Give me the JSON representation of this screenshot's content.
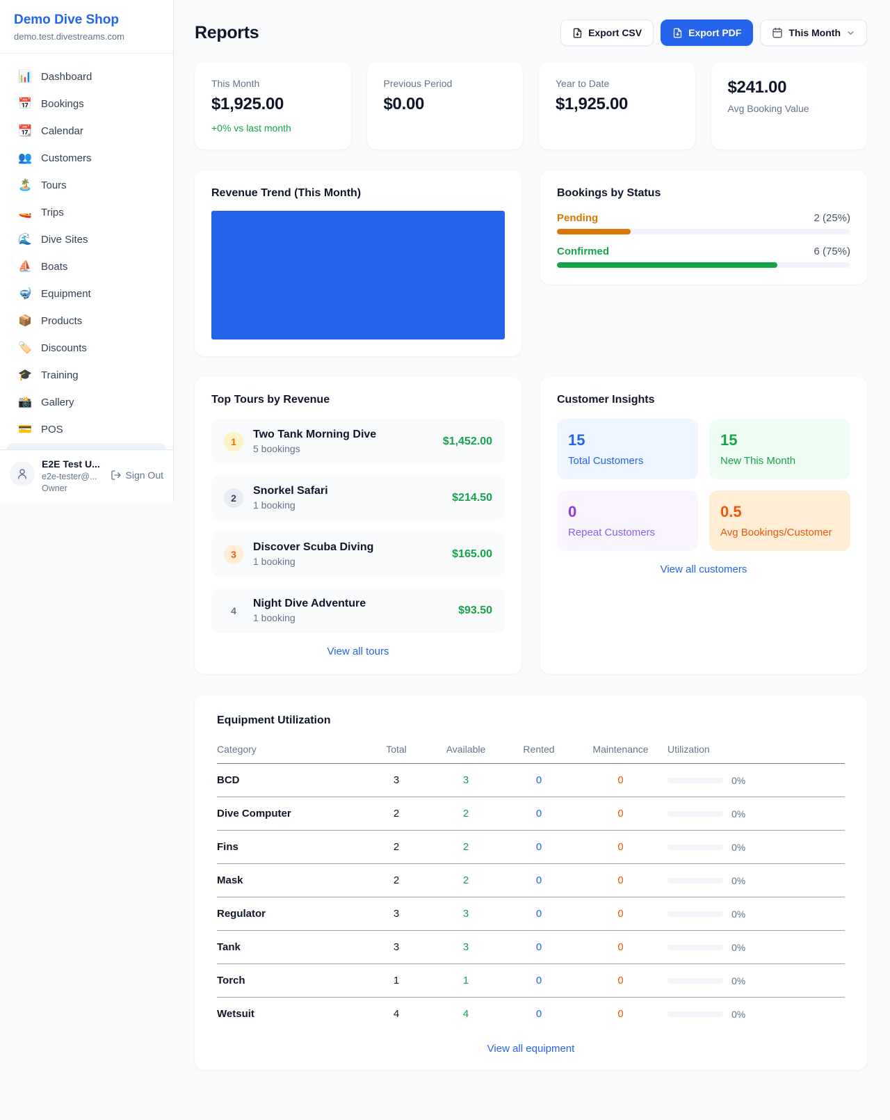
{
  "sidebar": {
    "shop_name": "Demo Dive Shop",
    "shop_domain": "demo.test.divestreams.com",
    "items": [
      {
        "icon": "📊",
        "label": "Dashboard"
      },
      {
        "icon": "📅",
        "label": "Bookings"
      },
      {
        "icon": "📆",
        "label": "Calendar"
      },
      {
        "icon": "👥",
        "label": "Customers"
      },
      {
        "icon": "🏝️",
        "label": "Tours"
      },
      {
        "icon": "🚤",
        "label": "Trips"
      },
      {
        "icon": "🌊",
        "label": "Dive Sites"
      },
      {
        "icon": "⛵",
        "label": "Boats"
      },
      {
        "icon": "🤿",
        "label": "Equipment"
      },
      {
        "icon": "📦",
        "label": "Products"
      },
      {
        "icon": "🏷️",
        "label": "Discounts"
      },
      {
        "icon": "🎓",
        "label": "Training"
      },
      {
        "icon": "📸",
        "label": "Gallery"
      },
      {
        "icon": "💳",
        "label": "POS"
      }
    ],
    "user": {
      "name": "E2E Test U...",
      "email": "e2e-tester@...",
      "role": "Owner",
      "sign_out": "Sign Out"
    }
  },
  "header": {
    "title": "Reports",
    "export_csv": "Export CSV",
    "export_pdf": "Export PDF",
    "period": "This Month"
  },
  "stats": [
    {
      "label": "This Month",
      "value": "$1,925.00",
      "delta": "+0% vs last month"
    },
    {
      "label": "Previous Period",
      "value": "$0.00"
    },
    {
      "label": "Year to Date",
      "value": "$1,925.00"
    },
    {
      "label": "Avg Booking Value",
      "value": "$241.00"
    }
  ],
  "revenue_trend": {
    "title": "Revenue Trend (This Month)"
  },
  "bookings_by_status": {
    "title": "Bookings by Status",
    "rows": [
      {
        "label": "Pending",
        "value": "2 (25%)",
        "pct": 25,
        "color": "#d97706"
      },
      {
        "label": "Confirmed",
        "value": "6 (75%)",
        "pct": 75,
        "color": "#16a34a"
      }
    ]
  },
  "top_tours": {
    "title": "Top Tours by Revenue",
    "view_all": "View all tours",
    "items": [
      {
        "rank": "1",
        "name": "Two Tank Morning Dive",
        "bookings": "5 bookings",
        "revenue": "$1,452.00"
      },
      {
        "rank": "2",
        "name": "Snorkel Safari",
        "bookings": "1 booking",
        "revenue": "$214.50"
      },
      {
        "rank": "3",
        "name": "Discover Scuba Diving",
        "bookings": "1 booking",
        "revenue": "$165.00"
      },
      {
        "rank": "4",
        "name": "Night Dive Adventure",
        "bookings": "1 booking",
        "revenue": "$93.50"
      }
    ]
  },
  "customer_insights": {
    "title": "Customer Insights",
    "view_all": "View all customers",
    "tiles": [
      {
        "value": "15",
        "label": "Total Customers"
      },
      {
        "value": "15",
        "label": "New This Month"
      },
      {
        "value": "0",
        "label": "Repeat Customers"
      },
      {
        "value": "0.5",
        "label": "Avg Bookings/Customer"
      }
    ]
  },
  "equipment": {
    "title": "Equipment Utilization",
    "view_all": "View all equipment",
    "columns": [
      "Category",
      "Total",
      "Available",
      "Rented",
      "Maintenance",
      "Utilization"
    ],
    "rows": [
      {
        "category": "BCD",
        "total": "3",
        "available": "3",
        "rented": "0",
        "maintenance": "0",
        "utilization": "0%"
      },
      {
        "category": "Dive Computer",
        "total": "2",
        "available": "2",
        "rented": "0",
        "maintenance": "0",
        "utilization": "0%"
      },
      {
        "category": "Fins",
        "total": "2",
        "available": "2",
        "rented": "0",
        "maintenance": "0",
        "utilization": "0%"
      },
      {
        "category": "Mask",
        "total": "2",
        "available": "2",
        "rented": "0",
        "maintenance": "0",
        "utilization": "0%"
      },
      {
        "category": "Regulator",
        "total": "3",
        "available": "3",
        "rented": "0",
        "maintenance": "0",
        "utilization": "0%"
      },
      {
        "category": "Tank",
        "total": "3",
        "available": "3",
        "rented": "0",
        "maintenance": "0",
        "utilization": "0%"
      },
      {
        "category": "Torch",
        "total": "1",
        "available": "1",
        "rented": "0",
        "maintenance": "0",
        "utilization": "0%"
      },
      {
        "category": "Wetsuit",
        "total": "4",
        "available": "4",
        "rented": "0",
        "maintenance": "0",
        "utilization": "0%"
      }
    ]
  },
  "colors": {
    "accent_blue": "#2563eb",
    "green": "#16a34a",
    "amber": "#d97706",
    "deep_orange": "#ea580c",
    "purple": "#9333ea"
  },
  "chart_data": [
    {
      "type": "bar",
      "title": "Revenue Trend (This Month)",
      "categories": [
        "This Month"
      ],
      "values": [
        1925
      ],
      "ylabel": "",
      "xlabel": "",
      "note": "single solid blue bar filling the whole plot area, no axes or gridlines shown",
      "color": "#2563eb"
    },
    {
      "type": "bar",
      "title": "Bookings by Status",
      "categories": [
        "Pending",
        "Confirmed"
      ],
      "values": [
        2,
        6
      ],
      "value_labels": [
        "2 (25%)",
        "6 (75%)"
      ],
      "percent": [
        25,
        75
      ],
      "colors": [
        "#d97706",
        "#16a34a"
      ],
      "layout": "horizontal progress bars"
    }
  ]
}
